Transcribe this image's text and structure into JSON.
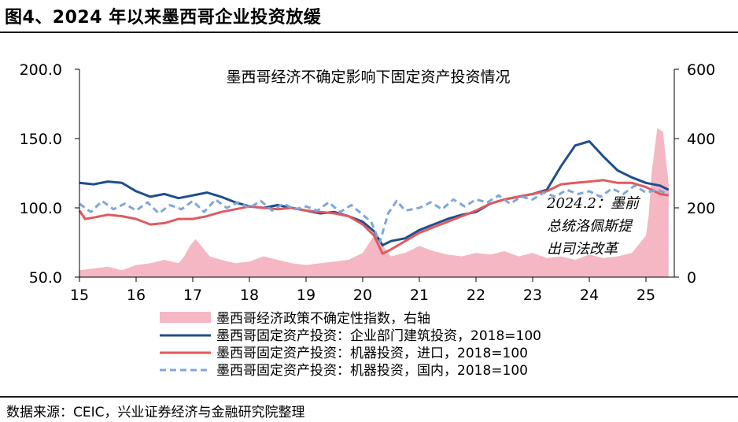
{
  "figure": {
    "title": "图4、2024 年以来墨西哥企业投资放缓",
    "source": "数据来源：CEIC，兴业证券经济与金融研究院整理"
  },
  "chart_data": {
    "type": "line",
    "title": "墨西哥经济不确定影响下固定资产投资情况",
    "x_ticks": [
      "15",
      "16",
      "17",
      "18",
      "19",
      "20",
      "21",
      "22",
      "23",
      "24",
      "25"
    ],
    "x_range": [
      2015.0,
      2025.5
    ],
    "y_left": {
      "ticks": [
        "50.0",
        "100.0",
        "150.0",
        "200.0"
      ],
      "range": [
        50,
        200
      ]
    },
    "y_right": {
      "ticks": [
        "0",
        "200",
        "400",
        "600"
      ],
      "range": [
        0,
        600
      ]
    },
    "annotation": [
      "2024.2：墨前",
      "总统洛佩斯提",
      "出司法改革"
    ],
    "legend": [
      "墨西哥经济政策不确定性指数，右轴",
      "墨西哥固定资产投资：企业部门建筑投资，2018=100",
      "墨西哥固定资产投资：机器投资，进口，2018=100",
      "墨西哥固定资产投资：机器投资，国内，2018=100"
    ],
    "colors": {
      "uncertainty": "#f4b7c3",
      "construction": "#1f4e8c",
      "machinery_import": "#e05a5f",
      "machinery_domestic": "#7fa6dc"
    },
    "series": [
      {
        "name": "墨西哥经济政策不确定性指数，右轴",
        "axis": "right",
        "style": "area",
        "x": [
          2015.0,
          2015.25,
          2015.5,
          2015.75,
          2016.0,
          2016.25,
          2016.5,
          2016.75,
          2016.85,
          2016.95,
          2017.0,
          2017.05,
          2017.15,
          2017.3,
          2017.5,
          2017.75,
          2018.0,
          2018.25,
          2018.5,
          2018.75,
          2019.0,
          2019.25,
          2019.5,
          2019.75,
          2020.0,
          2020.2,
          2020.3,
          2020.4,
          2020.5,
          2020.75,
          2021.0,
          2021.25,
          2021.5,
          2021.75,
          2022.0,
          2022.25,
          2022.5,
          2022.75,
          2023.0,
          2023.25,
          2023.5,
          2023.75,
          2024.0,
          2024.25,
          2024.5,
          2024.75,
          2025.0,
          2025.05,
          2025.1,
          2025.2,
          2025.3,
          2025.4
        ],
        "values": [
          20,
          25,
          30,
          20,
          35,
          40,
          50,
          40,
          60,
          90,
          100,
          110,
          90,
          60,
          50,
          40,
          45,
          60,
          50,
          40,
          35,
          40,
          45,
          50,
          70,
          120,
          110,
          80,
          60,
          70,
          90,
          75,
          65,
          60,
          70,
          65,
          75,
          60,
          70,
          55,
          60,
          50,
          65,
          55,
          60,
          70,
          120,
          180,
          300,
          430,
          420,
          270
        ]
      },
      {
        "name": "墨西哥固定资产投资：企业部门建筑投资，2018=100",
        "axis": "left",
        "style": "solid",
        "x": [
          2015.0,
          2015.25,
          2015.5,
          2015.75,
          2016.0,
          2016.25,
          2016.5,
          2016.75,
          2017.0,
          2017.25,
          2017.5,
          2017.75,
          2018.0,
          2018.25,
          2018.5,
          2018.75,
          2019.0,
          2019.25,
          2019.5,
          2019.75,
          2020.0,
          2020.2,
          2020.35,
          2020.5,
          2020.75,
          2021.0,
          2021.25,
          2021.5,
          2021.75,
          2022.0,
          2022.25,
          2022.5,
          2022.75,
          2023.0,
          2023.25,
          2023.5,
          2023.75,
          2024.0,
          2024.25,
          2024.5,
          2024.75,
          2025.0,
          2025.25,
          2025.4
        ],
        "values": [
          118,
          117,
          119,
          118,
          112,
          108,
          110,
          107,
          109,
          111,
          108,
          104,
          101,
          100,
          102,
          100,
          98,
          96,
          97,
          94,
          90,
          83,
          73,
          76,
          78,
          84,
          88,
          92,
          95,
          97,
          103,
          106,
          108,
          110,
          113,
          130,
          145,
          148,
          137,
          127,
          122,
          118,
          116,
          113
        ]
      },
      {
        "name": "墨西哥固定资产投资：机器投资，进口，2018=100",
        "axis": "left",
        "style": "solid",
        "x": [
          2015.0,
          2015.1,
          2015.25,
          2015.5,
          2015.75,
          2016.0,
          2016.25,
          2016.5,
          2016.75,
          2017.0,
          2017.25,
          2017.5,
          2017.75,
          2018.0,
          2018.25,
          2018.5,
          2018.75,
          2019.0,
          2019.25,
          2019.5,
          2019.75,
          2020.0,
          2020.2,
          2020.35,
          2020.5,
          2020.75,
          2021.0,
          2021.25,
          2021.5,
          2021.75,
          2022.0,
          2022.25,
          2022.5,
          2022.75,
          2023.0,
          2023.25,
          2023.5,
          2023.75,
          2024.0,
          2024.25,
          2024.5,
          2024.75,
          2025.0,
          2025.25,
          2025.4
        ],
        "values": [
          98,
          92,
          93,
          95,
          94,
          92,
          88,
          89,
          92,
          92,
          94,
          97,
          99,
          101,
          100,
          99,
          100,
          98,
          97,
          96,
          94,
          88,
          80,
          67,
          70,
          76,
          82,
          86,
          90,
          94,
          98,
          103,
          106,
          108,
          110,
          112,
          117,
          118,
          119,
          120,
          118,
          118,
          115,
          110,
          109
        ]
      },
      {
        "name": "墨西哥固定资产投资：机器投资，国内，2018=100",
        "axis": "left",
        "style": "dashed",
        "x": [
          2015.0,
          2015.2,
          2015.4,
          2015.6,
          2015.8,
          2016.0,
          2016.2,
          2016.4,
          2016.6,
          2016.8,
          2017.0,
          2017.2,
          2017.4,
          2017.6,
          2017.8,
          2018.0,
          2018.2,
          2018.4,
          2018.6,
          2018.8,
          2019.0,
          2019.2,
          2019.4,
          2019.6,
          2019.8,
          2020.0,
          2020.15,
          2020.3,
          2020.45,
          2020.6,
          2020.75,
          2021.0,
          2021.2,
          2021.4,
          2021.6,
          2021.8,
          2022.0,
          2022.2,
          2022.4,
          2022.6,
          2022.8,
          2023.0,
          2023.2,
          2023.4,
          2023.6,
          2023.8,
          2024.0,
          2024.2,
          2024.4,
          2024.6,
          2024.8,
          2025.0,
          2025.2,
          2025.4
        ],
        "values": [
          103,
          97,
          105,
          99,
          103,
          98,
          104,
          96,
          102,
          99,
          105,
          97,
          106,
          100,
          104,
          100,
          105,
          98,
          103,
          99,
          101,
          98,
          104,
          97,
          102,
          95,
          90,
          75,
          96,
          105,
          98,
          100,
          104,
          99,
          106,
          101,
          106,
          104,
          109,
          103,
          108,
          106,
          111,
          108,
          113,
          110,
          112,
          108,
          114,
          110,
          116,
          111,
          113,
          110
        ]
      }
    ]
  }
}
